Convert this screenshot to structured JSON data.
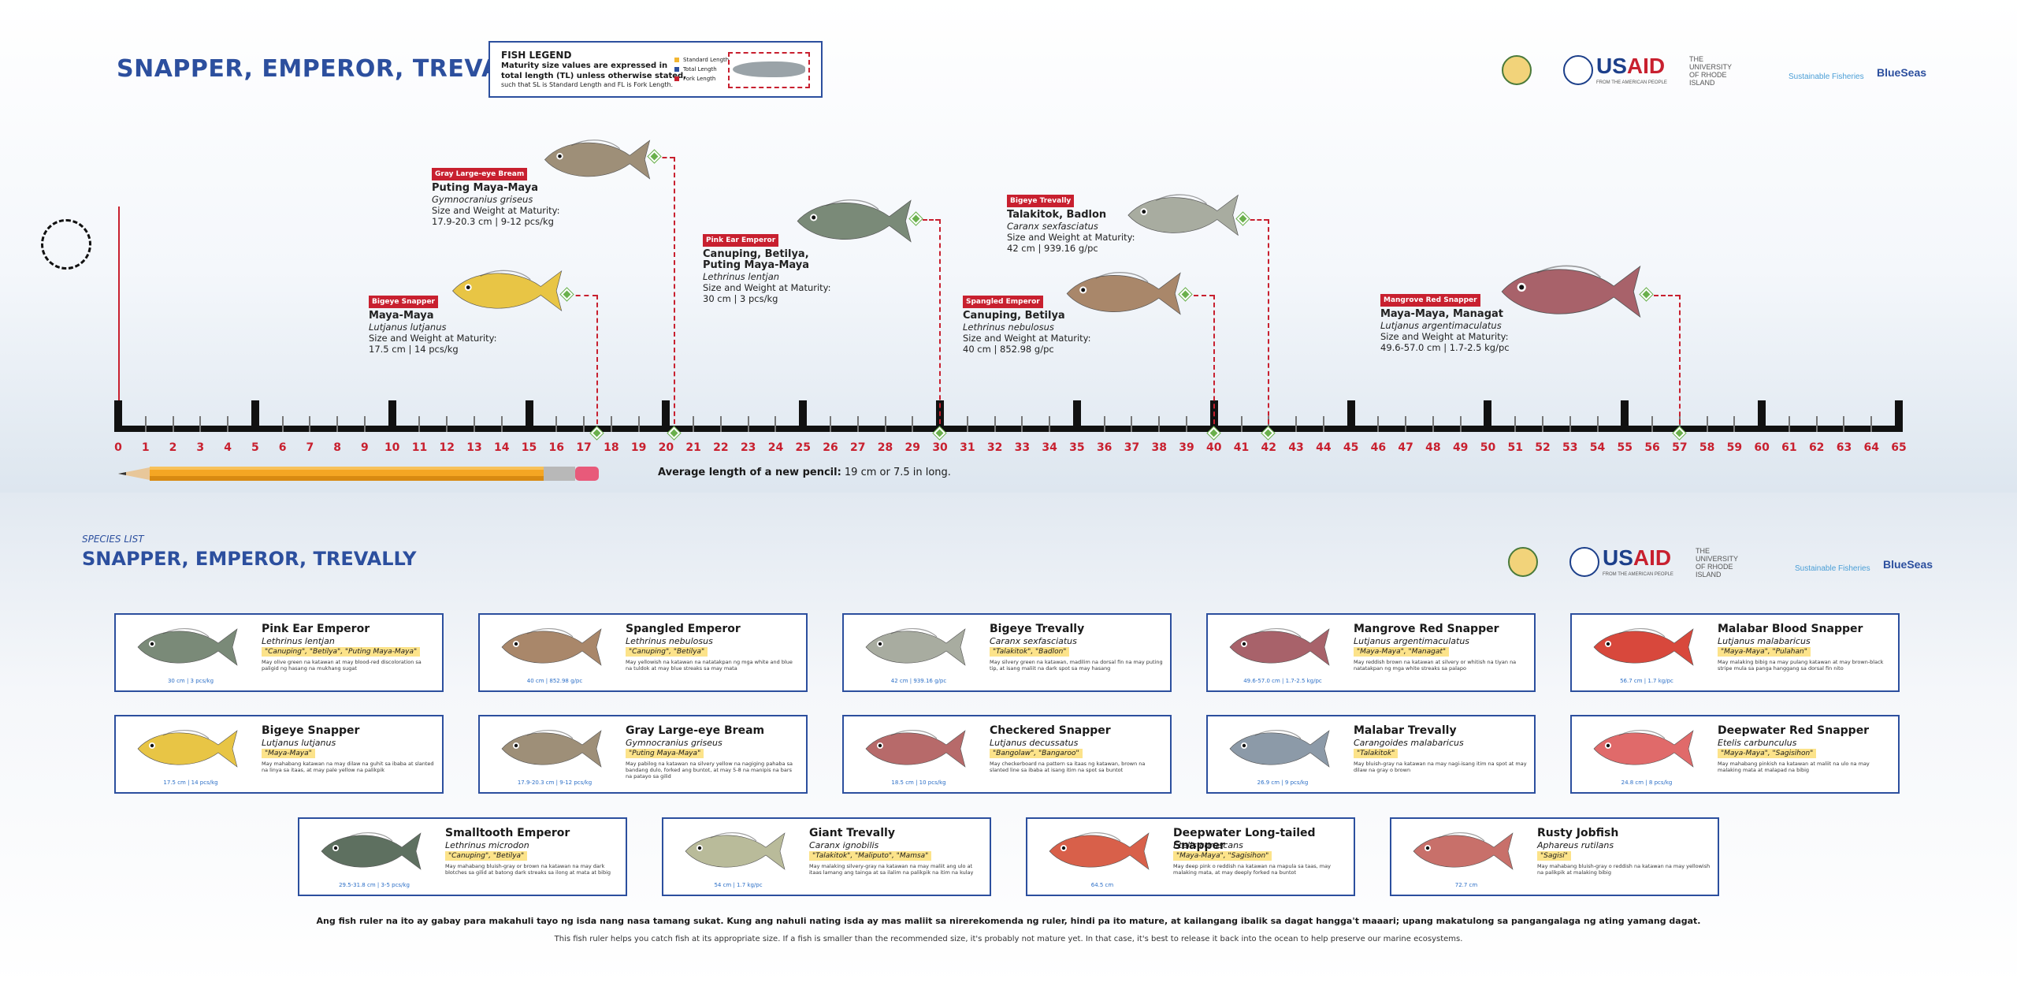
{
  "header": {
    "title": "SNAPPER, EMPEROR, TREVALLY"
  },
  "legend": {
    "title": "FISH LEGEND",
    "line1": "Maturity size values are expressed in",
    "line2": "total length (TL) unless otherwise stated,",
    "line3": "such that SL is Standard Length and FL is Fork Length.",
    "keys": [
      {
        "label": "Standard Length",
        "color": "#f2b632"
      },
      {
        "label": "Total Length",
        "color": "#2c4f9e"
      },
      {
        "label": "Fork Length",
        "color": "#c8202f"
      }
    ]
  },
  "logos": {
    "usaid_main": "US",
    "usaid_accent": "AID",
    "usaid_sub": "FROM THE AMERICAN PEOPLE",
    "uri": "THE UNIVERSITY OF RHODE ISLAND",
    "sustainable": "Sustainable Fisheries",
    "blueseas": "BlueSeas"
  },
  "ruler": {
    "min": 0,
    "max": 65,
    "unit": "cm"
  },
  "ruler_species": [
    {
      "tag": "Bigeye Snapper",
      "name": "Maya-Maya",
      "sci": "Lutjanus lutjanus",
      "size_label": "Size and Weight at Maturity:",
      "size": "17.5 cm | 14 pcs/kg",
      "cm": 17.5,
      "color": "#e8c545"
    },
    {
      "tag": "Gray Large-eye Bream",
      "name": "Puting Maya-Maya",
      "sci": "Gymnocranius griseus",
      "size_label": "Size and Weight at Maturity:",
      "size": "17.9-20.3 cm | 9-12 pcs/kg",
      "cm": 20.3,
      "color": "#9e8f78"
    },
    {
      "tag": "Pink Ear Emperor",
      "name": "Canuping, Betilya,",
      "name2": "Puting Maya-Maya",
      "sci": "Lethrinus lentjan",
      "size_label": "Size and Weight at Maturity:",
      "size": "30 cm | 3 pcs/kg",
      "cm": 30,
      "color": "#7a8a78"
    },
    {
      "tag": "Spangled Emperor",
      "name": "Canuping, Betilya",
      "sci": "Lethrinus nebulosus",
      "size_label": "Size and Weight at Maturity:",
      "size": "40 cm | 852.98 g/pc",
      "cm": 40,
      "color": "#a9876a"
    },
    {
      "tag": "Bigeye Trevally",
      "name": "Talakitok, Badlon",
      "sci": "Caranx sexfasciatus",
      "size_label": "Size and Weight at Maturity:",
      "size": "42 cm | 939.16 g/pc",
      "cm": 42,
      "color": "#a8aca0"
    },
    {
      "tag": "Mangrove Red Snapper",
      "name": "Maya-Maya, Managat",
      "sci": "Lutjanus argentimaculatus",
      "size_label": "Size and Weight at Maturity:",
      "size": "49.6-57.0 cm | 1.7-2.5 kg/pc",
      "cm": 57,
      "color": "#a8626a"
    }
  ],
  "pencil": {
    "label": "Average length of a new pencil:",
    "value": "19 cm or 7.5 in long."
  },
  "species_list": {
    "kicker": "SPECIES LIST",
    "title": "SNAPPER, EMPEROR, TREVALLY",
    "cards": [
      {
        "name": "Pink Ear Emperor",
        "sci": "Lethrinus lentjan",
        "local": "\"Canuping\", \"Betilya\", \"Puting Maya-Maya\"",
        "desc": "May olive green na katawan at may blood-red discoloration sa paligid ng hasang na mukhang sugat",
        "size": "30 cm | 3 pcs/kg",
        "color": "#7a8a78"
      },
      {
        "name": "Spangled Emperor",
        "sci": "Lethrinus nebulosus",
        "local": "\"Canuping\", \"Betilya\"",
        "desc": "May yellowish na katawan na natatakpan ng mga white and blue na tuldok at may blue streaks sa may mata",
        "size": "40 cm | 852.98 g/pc",
        "color": "#a9876a"
      },
      {
        "name": "Bigeye Trevally",
        "sci": "Caranx sexfasciatus",
        "local": "\"Talakitok\", \"Badlon\"",
        "desc": "May silvery green na katawan, madilim na dorsal fin na may puting tip, at isang maliit na dark spot sa may hasang",
        "size": "42 cm | 939.16 g/pc",
        "color": "#a8aca0"
      },
      {
        "name": "Mangrove Red Snapper",
        "sci": "Lutjanus argentimaculatus",
        "local": "\"Maya-Maya\", \"Managat\"",
        "desc": "May reddish brown na katawan at silvery or whitish na tiyan na natatakpan ng mga white streaks sa palapo",
        "size": "49.6-57.0 cm | 1.7-2.5 kg/pc",
        "color": "#a8626a"
      },
      {
        "name": "Malabar Blood Snapper",
        "sci": "Lutjanus malabaricus",
        "local": "\"Maya-Maya\", \"Pulahan\"",
        "desc": "May malaking bibig na may pulang katawan at may brown-black stripe mula sa panga hanggang sa dorsal fin nito",
        "size": "56.7 cm | 1.7 kg/pc",
        "color": "#d8483c"
      },
      {
        "name": "Bigeye Snapper",
        "sci": "Lutjanus lutjanus",
        "local": "\"Maya-Maya\"",
        "desc": "May mahabang katawan na may dilaw na guhit sa ibaba at slanted na linya sa itaas, at may pale yellow na palikpik",
        "size": "17.5 cm | 14 pcs/kg",
        "color": "#e8c545"
      },
      {
        "name": "Gray Large-eye Bream",
        "sci": "Gymnocranius griseus",
        "local": "\"Puting Maya-Maya\"",
        "desc": "May pabilog na katawan na silvery yellow na nagiging pahaba sa bandang dulo, forked ang buntot, at may 5-8 na manipis na bars na patayo sa gilid",
        "size": "17.9-20.3 cm | 9-12 pcs/kg",
        "color": "#9e8f78"
      },
      {
        "name": "Checkered Snapper",
        "sci": "Lutjanus decussatus",
        "local": "\"Bangolaw\", \"Bangaroo\"",
        "desc": "May checkerboard na pattern sa itaas ng katawan, brown na slanted line sa ibaba at isang itim na spot sa buntot",
        "size": "18.5 cm | 10 pcs/kg",
        "color": "#b76a6a"
      },
      {
        "name": "Malabar Trevally",
        "sci": "Carangoides malabaricus",
        "local": "\"Talakitok\"",
        "desc": "May bluish-gray na katawan na may nagi-isang itim na spot at may dilaw na gray o brown",
        "size": "26.9 cm | 9 pcs/kg",
        "color": "#8c9aa8"
      },
      {
        "name": "Deepwater Red Snapper",
        "sci": "Etelis carbunculus",
        "local": "\"Maya-Maya\", \"Sagisihon\"",
        "desc": "May mahabang pinkish na katawan at maliit na ulo na may malaking mata at malapad na bibig",
        "size": "24.8 cm | 8 pcs/kg",
        "color": "#e06a6a"
      },
      {
        "name": "Smalltooth Emperor",
        "sci": "Lethrinus microdon",
        "local": "\"Canuping\", \"Betilya\"",
        "desc": "May mahabang bluish-gray or brown na katawan na may dark blotches sa gilid at batong dark streaks sa ilong at mata at bibig",
        "size": "29.5-31.8 cm | 3-5 pcs/kg",
        "color": "#5e7060"
      },
      {
        "name": "Giant Trevally",
        "sci": "Caranx ignobilis",
        "local": "\"Talakitok\", \"Maliputo\", \"Mamsa\"",
        "desc": "May malaking silvery-gray na katawan na may maliit ang ulo at itaas lamang ang tainga at sa ilalim na palikpik na itim na kulay",
        "size": "54 cm | 1.7 kg/pc",
        "color": "#b9bb9a"
      },
      {
        "name": "Deepwater Long-tailed Snapper",
        "sci": "Etelis coruscans",
        "local": "\"Maya-Maya\", \"Sagisihon\"",
        "desc": "May deep pink o reddish na katawan na mapula sa taas, may malaking mata, at may deeply forked na buntot",
        "size": "64.5 cm",
        "color": "#d8604a"
      },
      {
        "name": "Rusty Jobfish",
        "sci": "Aphareus rutilans",
        "local": "\"Sagisi\"",
        "desc": "May mahabang bluish-gray o reddish na katawan na may yellowish na palikpik at malaking bibig",
        "size": "72.7 cm",
        "color": "#c8706a"
      }
    ]
  },
  "footer": {
    "line1": "Ang fish ruler na ito ay gabay para makahuli tayo ng isda nang nasa tamang sukat. Kung ang nahuli nating isda ay mas maliit sa nirerekomenda ng ruler, hindi pa ito mature, at kailangang ibalik sa dagat hangga't maaari; upang makatulong sa pangangalaga ng ating yamang dagat.",
    "line2": "This fish ruler helps you catch fish at its appropriate size. If a fish is smaller than the recommended size, it's probably not mature yet. In that case, it's best to release it back into the ocean to help preserve our marine ecosystems."
  }
}
